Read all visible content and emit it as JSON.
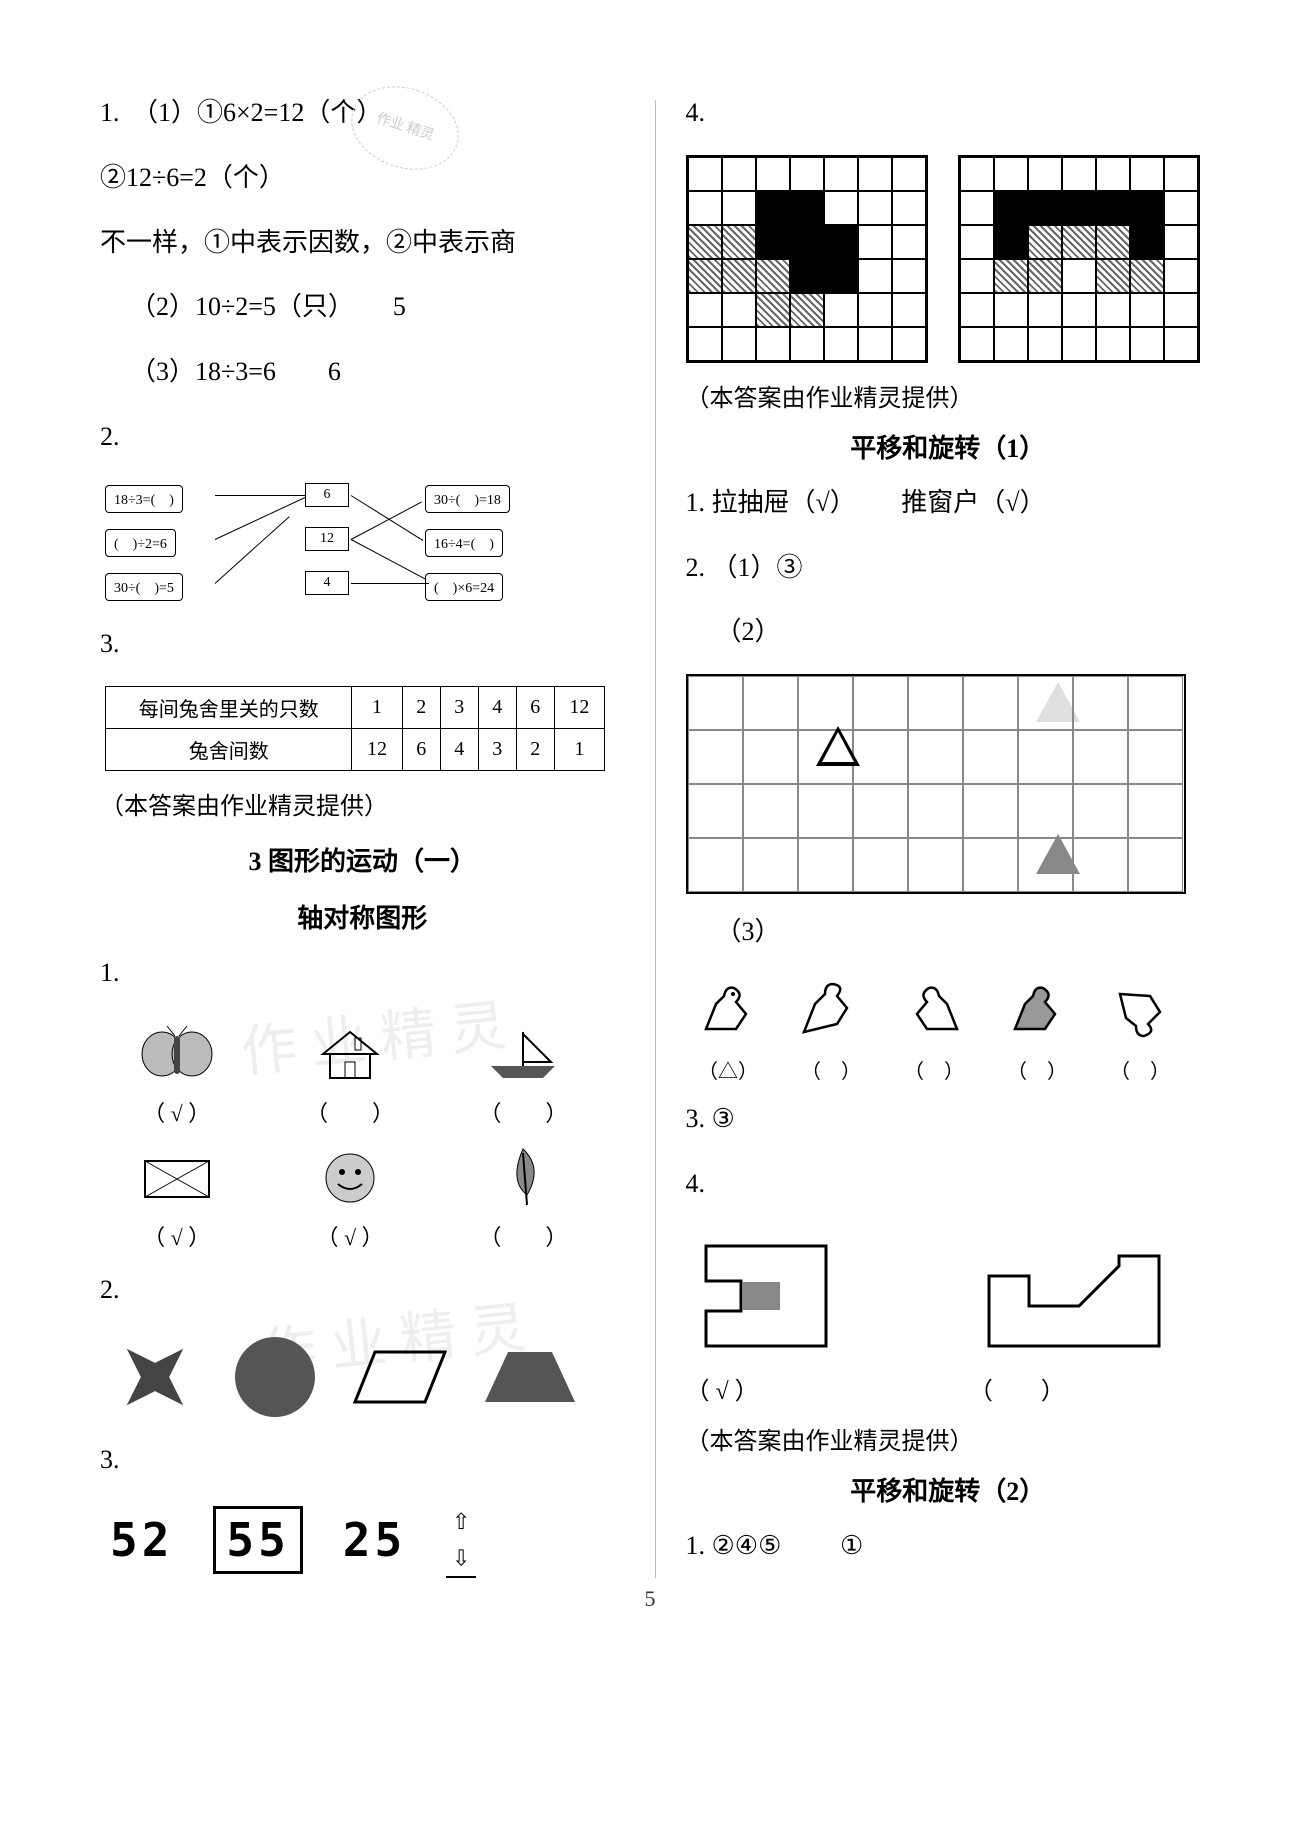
{
  "stamp": "作业\n精灵",
  "left": {
    "q1": {
      "num": "1.",
      "p1a": "（1）①6×2=12（个）",
      "p1b": "②12÷6=2（个）",
      "p1c": "不一样，①中表示因数，②中表示商",
      "p2": "（2）10÷2=5（只）　　5",
      "p3": "（3）18÷3=6　　6"
    },
    "q2": {
      "num": "2.",
      "left": [
        "18÷3=(　)",
        "(　)÷2=6",
        "30÷(　)=5"
      ],
      "mid": [
        "6",
        "12",
        "4"
      ],
      "right": [
        "30÷(　)=18",
        "16÷4=(　)",
        "(　)×6=24"
      ]
    },
    "q3": {
      "num": "3.",
      "header": "每间兔舍里关的只数",
      "header2": "兔舍间数",
      "cols": [
        "1",
        "2",
        "3",
        "4",
        "6",
        "12"
      ],
      "row2": [
        "12",
        "6",
        "4",
        "3",
        "2",
        "1"
      ]
    },
    "note1": "（本答案由作业精灵提供）",
    "section": "3 图形的运动（一）",
    "sub1": "轴对称图形",
    "sym": {
      "num": "1.",
      "labels": [
        "（ √ ）",
        "（　　）",
        "（　　）",
        "（ √ ）",
        "（ √ ）",
        "（　　）"
      ]
    },
    "shapes": {
      "num": "2."
    },
    "mirror": {
      "num": "3.",
      "d1": "52",
      "d2": "55",
      "d3": "25"
    },
    "watermark": "作 业 精 灵"
  },
  "right": {
    "q4": {
      "num": "4."
    },
    "grid1": {
      "cols": 7,
      "rows": 6,
      "cells": [
        "-------",
        "--bb---",
        "hhbbb--",
        "hhhbb--",
        "--hh---",
        "-------"
      ]
    },
    "grid2": {
      "cols": 7,
      "rows": 6,
      "cells": [
        "-------",
        "-bbbbb-",
        "-bhhhb-",
        "-hh-hh-",
        "-------",
        "-------"
      ]
    },
    "note2": "（本答案由作业精灵提供）",
    "section2": "平移和旋转（1）",
    "r1": {
      "num": "1.",
      "a": "拉抽屉（√）",
      "b": "推窗户（√）"
    },
    "r2": {
      "num": "2.",
      "p1": "（1）③",
      "p2": "（2）",
      "p3": "（3）"
    },
    "birds": [
      "（△）",
      "（　）",
      "（　）",
      "（　）",
      "（　）"
    ],
    "r3": {
      "num": "3.",
      "ans": "③"
    },
    "r4": {
      "num": "4.",
      "a": "（ √ ）",
      "b": "（　　）"
    },
    "note3": "（本答案由作业精灵提供）",
    "section3": "平移和旋转（2）",
    "r5": {
      "num": "1.",
      "a": "②④⑤",
      "b": "①"
    }
  },
  "pagenum": "5",
  "colors": {
    "text": "#000000",
    "bg": "#ffffff",
    "grid": "#888888",
    "watermark": "#eeeeee"
  }
}
